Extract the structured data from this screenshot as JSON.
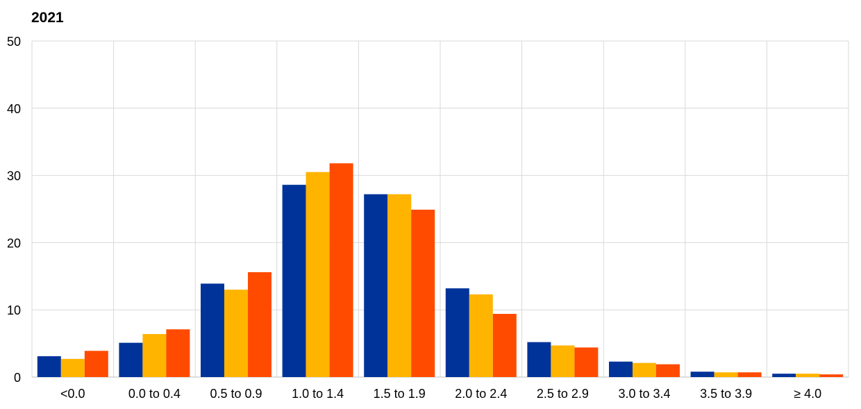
{
  "chart_data": {
    "type": "bar",
    "title": "2021",
    "xlabel": "",
    "ylabel": "",
    "ylim": [
      0,
      50
    ],
    "yticks": [
      0,
      10,
      20,
      30,
      40,
      50
    ],
    "grid": true,
    "legend": "none",
    "categories": [
      "<0.0",
      "0.0 to 0.4",
      "0.5 to 0.9",
      "1.0 to 1.4",
      "1.5 to 1.9",
      "2.0 to 2.4",
      "2.5 to 2.9",
      "3.0 to 3.4",
      "3.5 to 3.9",
      "≥ 4.0"
    ],
    "series": [
      {
        "color": "#003399",
        "values": [
          3.1,
          5.1,
          13.9,
          28.6,
          27.2,
          13.2,
          5.2,
          2.3,
          0.8,
          0.5
        ]
      },
      {
        "color": "#FFB400",
        "values": [
          2.7,
          6.4,
          13.0,
          30.5,
          27.2,
          12.3,
          4.7,
          2.1,
          0.7,
          0.5
        ]
      },
      {
        "color": "#FF4B00",
        "values": [
          3.9,
          7.1,
          15.6,
          31.8,
          24.9,
          9.4,
          4.4,
          1.9,
          0.7,
          0.4
        ]
      }
    ]
  }
}
